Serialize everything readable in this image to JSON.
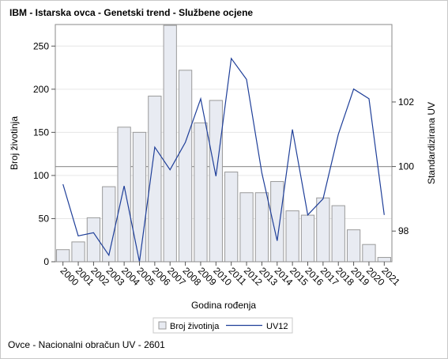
{
  "title": "IBM - Istarska ovca - Genetski trend - Službene ocjene",
  "footer": "Ovce - Nacionalni obračun UV - 2601",
  "chart_data": {
    "type": "bar",
    "categories": [
      "2000",
      "2001",
      "2002",
      "2003",
      "2004",
      "2005",
      "2006",
      "2007",
      "2008",
      "2009",
      "2010",
      "2011",
      "2012",
      "2013",
      "2014",
      "2015",
      "2016",
      "2017",
      "2018",
      "2019",
      "2020",
      "2021"
    ],
    "xlabel": "Godina rođenja",
    "ylabel": "Broj životinja",
    "y2label": "Standardizirana UV",
    "ylim": [
      0,
      275
    ],
    "yticks": [
      0,
      50,
      100,
      150,
      200,
      250
    ],
    "y2lim": [
      97.05,
      104.4
    ],
    "y2ticks": [
      98,
      100,
      102
    ],
    "y2_refline": 100,
    "grid": "horizontal",
    "legend_position": "bottom",
    "series": [
      {
        "name": "Broj životinja",
        "type": "bar",
        "axis": "left",
        "color": "#e8ebf2",
        "edge": "#9a9a9a",
        "values": [
          14,
          23,
          51,
          87,
          156,
          150,
          192,
          274,
          222,
          161,
          187,
          104,
          80,
          80,
          93,
          59,
          54,
          74,
          65,
          37,
          20,
          5
        ]
      },
      {
        "name": "UV12",
        "type": "line",
        "axis": "right",
        "color": "#1f3f99",
        "values": [
          99.45,
          97.85,
          97.95,
          97.25,
          99.4,
          97.05,
          100.6,
          99.9,
          100.75,
          102.1,
          99.7,
          103.35,
          102.7,
          99.8,
          97.7,
          101.15,
          98.5,
          99.0,
          101.0,
          102.4,
          102.1,
          98.5
        ]
      }
    ]
  }
}
